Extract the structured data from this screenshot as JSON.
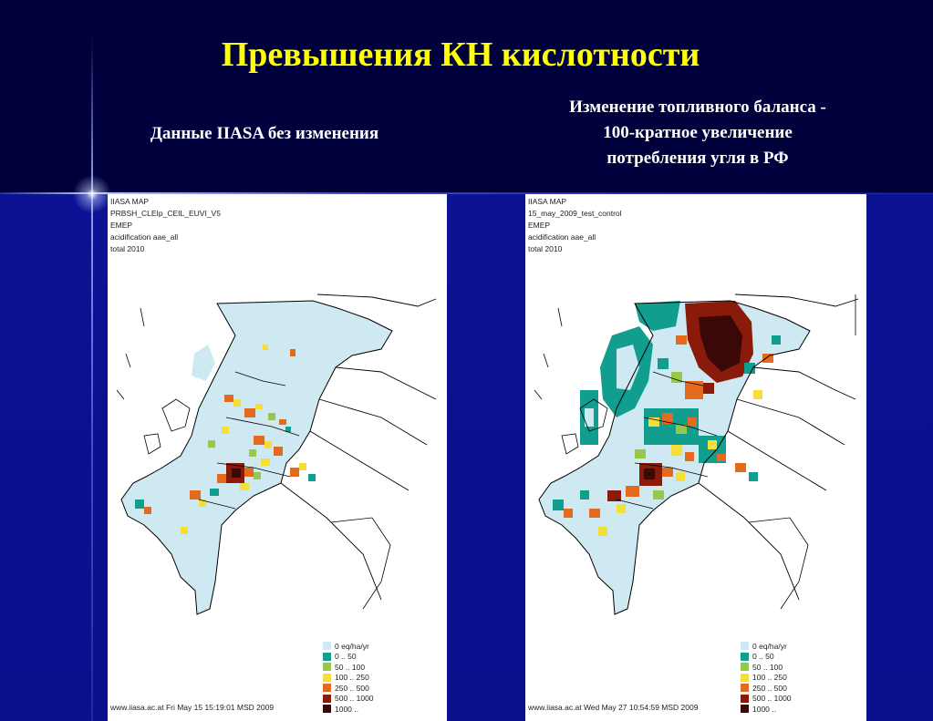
{
  "slide": {
    "title": "Превышения КН кислотности",
    "left_caption": "Данные IIASA без изменения",
    "right_caption_lines": [
      "Изменение топливного баланса -",
      "100-кратное увеличение",
      "потребления угля в РФ"
    ]
  },
  "maps": [
    {
      "header": [
        "IIASA MAP",
        "PRBSH_CLEIp_CEIL_EUVI_V5",
        "EMEP",
        "acidification aae_all",
        "total 2010"
      ],
      "footer": "www.iiasa.ac.at  Fri May 15 15:19:01 MSD 2009"
    },
    {
      "header": [
        "IIASA MAP",
        "15_may_2009_test_control",
        "EMEP",
        "acidification aae_all",
        "total 2010"
      ],
      "footer": "www.iiasa.ac.at  Wed May 27 10:54:59 MSD 2009"
    }
  ],
  "legend": [
    {
      "label": "0 eq/ha/yr",
      "color": "#cfe9f3"
    },
    {
      "label": "0 .. 50",
      "color": "#119e8f"
    },
    {
      "label": "50 .. 100",
      "color": "#95c84b"
    },
    {
      "label": "100 .. 250",
      "color": "#f4df3a"
    },
    {
      "label": "250 .. 500",
      "color": "#e46a1e"
    },
    {
      "label": "500 .. 1000",
      "color": "#8a1a0a"
    },
    {
      "label": "1000 ..",
      "color": "#3a0806"
    }
  ]
}
